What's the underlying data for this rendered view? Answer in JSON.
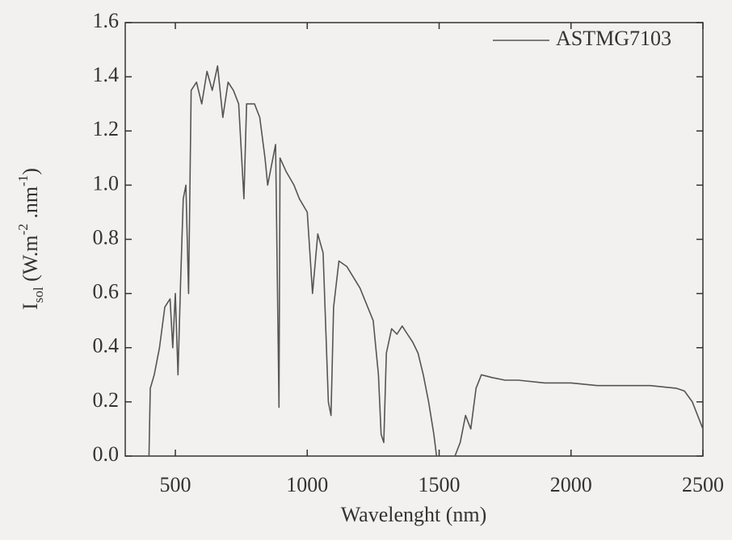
{
  "chart_data": {
    "type": "line",
    "xlabel": "Wavelenght (nm)",
    "ylabel": [
      "I",
      "sol",
      " (W.m",
      "-2",
      " .nm",
      "-1",
      ")"
    ],
    "xlim": [
      310,
      2500
    ],
    "ylim": [
      0,
      1.6
    ],
    "xticks": [
      500,
      1000,
      1500,
      2000,
      2500
    ],
    "yticks": [
      {
        "value": 0,
        "label": "0.0"
      },
      0.2,
      0.4,
      0.6,
      0.8,
      {
        "value": 1,
        "label": "1.0"
      },
      1.2,
      1.4,
      1.6
    ],
    "legend": "upper right",
    "x": [
      400,
      405,
      420,
      440,
      460,
      480,
      490,
      500,
      510,
      520,
      530,
      540,
      550,
      560,
      580,
      600,
      620,
      640,
      660,
      680,
      700,
      720,
      740,
      760,
      770,
      800,
      820,
      840,
      850,
      870,
      880,
      893,
      897,
      920,
      950,
      970,
      1000,
      1020,
      1040,
      1060,
      1080,
      1090,
      1100,
      1120,
      1150,
      1200,
      1250,
      1270,
      1280,
      1290,
      1300,
      1320,
      1340,
      1360,
      1380,
      1400,
      1420,
      1440,
      1460,
      1480,
      1490,
      1500,
      1560,
      1580,
      1600,
      1620,
      1640,
      1660,
      1700,
      1750,
      1800,
      1900,
      2000,
      2100,
      2200,
      2300,
      2400,
      2430,
      2460,
      2500
    ],
    "series": [
      {
        "name": "ASTMG7103",
        "color": "#555555",
        "values": [
          0.0,
          0.25,
          0.3,
          0.4,
          0.55,
          0.58,
          0.4,
          0.6,
          0.3,
          0.65,
          0.95,
          1.0,
          0.6,
          1.35,
          1.38,
          1.3,
          1.42,
          1.35,
          1.44,
          1.25,
          1.38,
          1.35,
          1.3,
          0.95,
          1.3,
          1.3,
          1.25,
          1.1,
          1.0,
          1.1,
          1.15,
          0.18,
          1.1,
          1.05,
          1.0,
          0.95,
          0.9,
          0.6,
          0.82,
          0.75,
          0.2,
          0.15,
          0.55,
          0.72,
          0.7,
          0.62,
          0.5,
          0.3,
          0.08,
          0.05,
          0.38,
          0.47,
          0.45,
          0.48,
          0.45,
          0.42,
          0.38,
          0.3,
          0.2,
          0.08,
          0.0,
          null,
          0.0,
          0.05,
          0.15,
          0.1,
          0.25,
          0.3,
          0.29,
          0.28,
          0.28,
          0.27,
          0.27,
          0.26,
          0.26,
          0.26,
          0.25,
          0.24,
          0.2,
          0.1
        ]
      }
    ]
  }
}
